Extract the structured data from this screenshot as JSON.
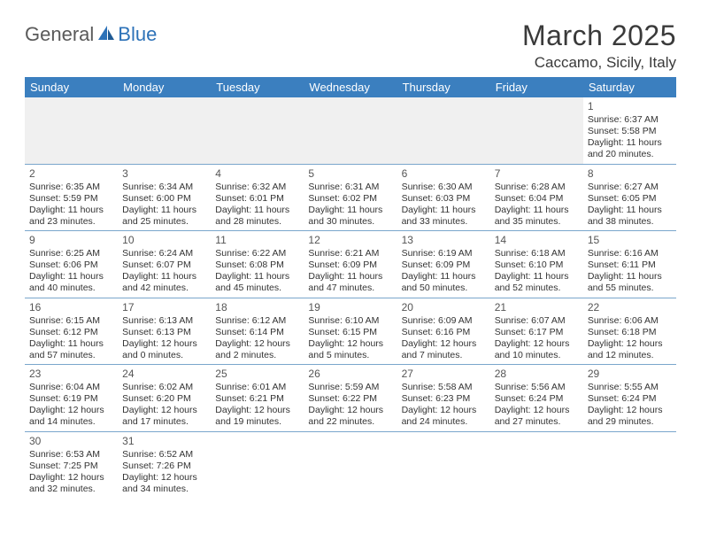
{
  "brand": {
    "part1": "General",
    "part2": "Blue"
  },
  "title": "March 2025",
  "location": "Caccamo, Sicily, Italy",
  "colors": {
    "header_bg": "#3b7fbf",
    "header_text": "#ffffff",
    "row_divider": "#7aa6cc",
    "blank_bg": "#f0f0f0",
    "text": "#333333",
    "logo_gray": "#5a5a5a",
    "logo_blue": "#2d72b8",
    "title_color": "#3a3a3a"
  },
  "weekdays": [
    "Sunday",
    "Monday",
    "Tuesday",
    "Wednesday",
    "Thursday",
    "Friday",
    "Saturday"
  ],
  "weeks": [
    [
      null,
      null,
      null,
      null,
      null,
      null,
      {
        "day": "1",
        "sunrise": "Sunrise: 6:37 AM",
        "sunset": "Sunset: 5:58 PM",
        "day1": "Daylight: 11 hours",
        "day2": "and 20 minutes."
      }
    ],
    [
      {
        "day": "2",
        "sunrise": "Sunrise: 6:35 AM",
        "sunset": "Sunset: 5:59 PM",
        "day1": "Daylight: 11 hours",
        "day2": "and 23 minutes."
      },
      {
        "day": "3",
        "sunrise": "Sunrise: 6:34 AM",
        "sunset": "Sunset: 6:00 PM",
        "day1": "Daylight: 11 hours",
        "day2": "and 25 minutes."
      },
      {
        "day": "4",
        "sunrise": "Sunrise: 6:32 AM",
        "sunset": "Sunset: 6:01 PM",
        "day1": "Daylight: 11 hours",
        "day2": "and 28 minutes."
      },
      {
        "day": "5",
        "sunrise": "Sunrise: 6:31 AM",
        "sunset": "Sunset: 6:02 PM",
        "day1": "Daylight: 11 hours",
        "day2": "and 30 minutes."
      },
      {
        "day": "6",
        "sunrise": "Sunrise: 6:30 AM",
        "sunset": "Sunset: 6:03 PM",
        "day1": "Daylight: 11 hours",
        "day2": "and 33 minutes."
      },
      {
        "day": "7",
        "sunrise": "Sunrise: 6:28 AM",
        "sunset": "Sunset: 6:04 PM",
        "day1": "Daylight: 11 hours",
        "day2": "and 35 minutes."
      },
      {
        "day": "8",
        "sunrise": "Sunrise: 6:27 AM",
        "sunset": "Sunset: 6:05 PM",
        "day1": "Daylight: 11 hours",
        "day2": "and 38 minutes."
      }
    ],
    [
      {
        "day": "9",
        "sunrise": "Sunrise: 6:25 AM",
        "sunset": "Sunset: 6:06 PM",
        "day1": "Daylight: 11 hours",
        "day2": "and 40 minutes."
      },
      {
        "day": "10",
        "sunrise": "Sunrise: 6:24 AM",
        "sunset": "Sunset: 6:07 PM",
        "day1": "Daylight: 11 hours",
        "day2": "and 42 minutes."
      },
      {
        "day": "11",
        "sunrise": "Sunrise: 6:22 AM",
        "sunset": "Sunset: 6:08 PM",
        "day1": "Daylight: 11 hours",
        "day2": "and 45 minutes."
      },
      {
        "day": "12",
        "sunrise": "Sunrise: 6:21 AM",
        "sunset": "Sunset: 6:09 PM",
        "day1": "Daylight: 11 hours",
        "day2": "and 47 minutes."
      },
      {
        "day": "13",
        "sunrise": "Sunrise: 6:19 AM",
        "sunset": "Sunset: 6:09 PM",
        "day1": "Daylight: 11 hours",
        "day2": "and 50 minutes."
      },
      {
        "day": "14",
        "sunrise": "Sunrise: 6:18 AM",
        "sunset": "Sunset: 6:10 PM",
        "day1": "Daylight: 11 hours",
        "day2": "and 52 minutes."
      },
      {
        "day": "15",
        "sunrise": "Sunrise: 6:16 AM",
        "sunset": "Sunset: 6:11 PM",
        "day1": "Daylight: 11 hours",
        "day2": "and 55 minutes."
      }
    ],
    [
      {
        "day": "16",
        "sunrise": "Sunrise: 6:15 AM",
        "sunset": "Sunset: 6:12 PM",
        "day1": "Daylight: 11 hours",
        "day2": "and 57 minutes."
      },
      {
        "day": "17",
        "sunrise": "Sunrise: 6:13 AM",
        "sunset": "Sunset: 6:13 PM",
        "day1": "Daylight: 12 hours",
        "day2": "and 0 minutes."
      },
      {
        "day": "18",
        "sunrise": "Sunrise: 6:12 AM",
        "sunset": "Sunset: 6:14 PM",
        "day1": "Daylight: 12 hours",
        "day2": "and 2 minutes."
      },
      {
        "day": "19",
        "sunrise": "Sunrise: 6:10 AM",
        "sunset": "Sunset: 6:15 PM",
        "day1": "Daylight: 12 hours",
        "day2": "and 5 minutes."
      },
      {
        "day": "20",
        "sunrise": "Sunrise: 6:09 AM",
        "sunset": "Sunset: 6:16 PM",
        "day1": "Daylight: 12 hours",
        "day2": "and 7 minutes."
      },
      {
        "day": "21",
        "sunrise": "Sunrise: 6:07 AM",
        "sunset": "Sunset: 6:17 PM",
        "day1": "Daylight: 12 hours",
        "day2": "and 10 minutes."
      },
      {
        "day": "22",
        "sunrise": "Sunrise: 6:06 AM",
        "sunset": "Sunset: 6:18 PM",
        "day1": "Daylight: 12 hours",
        "day2": "and 12 minutes."
      }
    ],
    [
      {
        "day": "23",
        "sunrise": "Sunrise: 6:04 AM",
        "sunset": "Sunset: 6:19 PM",
        "day1": "Daylight: 12 hours",
        "day2": "and 14 minutes."
      },
      {
        "day": "24",
        "sunrise": "Sunrise: 6:02 AM",
        "sunset": "Sunset: 6:20 PM",
        "day1": "Daylight: 12 hours",
        "day2": "and 17 minutes."
      },
      {
        "day": "25",
        "sunrise": "Sunrise: 6:01 AM",
        "sunset": "Sunset: 6:21 PM",
        "day1": "Daylight: 12 hours",
        "day2": "and 19 minutes."
      },
      {
        "day": "26",
        "sunrise": "Sunrise: 5:59 AM",
        "sunset": "Sunset: 6:22 PM",
        "day1": "Daylight: 12 hours",
        "day2": "and 22 minutes."
      },
      {
        "day": "27",
        "sunrise": "Sunrise: 5:58 AM",
        "sunset": "Sunset: 6:23 PM",
        "day1": "Daylight: 12 hours",
        "day2": "and 24 minutes."
      },
      {
        "day": "28",
        "sunrise": "Sunrise: 5:56 AM",
        "sunset": "Sunset: 6:24 PM",
        "day1": "Daylight: 12 hours",
        "day2": "and 27 minutes."
      },
      {
        "day": "29",
        "sunrise": "Sunrise: 5:55 AM",
        "sunset": "Sunset: 6:24 PM",
        "day1": "Daylight: 12 hours",
        "day2": "and 29 minutes."
      }
    ],
    [
      {
        "day": "30",
        "sunrise": "Sunrise: 6:53 AM",
        "sunset": "Sunset: 7:25 PM",
        "day1": "Daylight: 12 hours",
        "day2": "and 32 minutes."
      },
      {
        "day": "31",
        "sunrise": "Sunrise: 6:52 AM",
        "sunset": "Sunset: 7:26 PM",
        "day1": "Daylight: 12 hours",
        "day2": "and 34 minutes."
      },
      null,
      null,
      null,
      null,
      null
    ]
  ]
}
